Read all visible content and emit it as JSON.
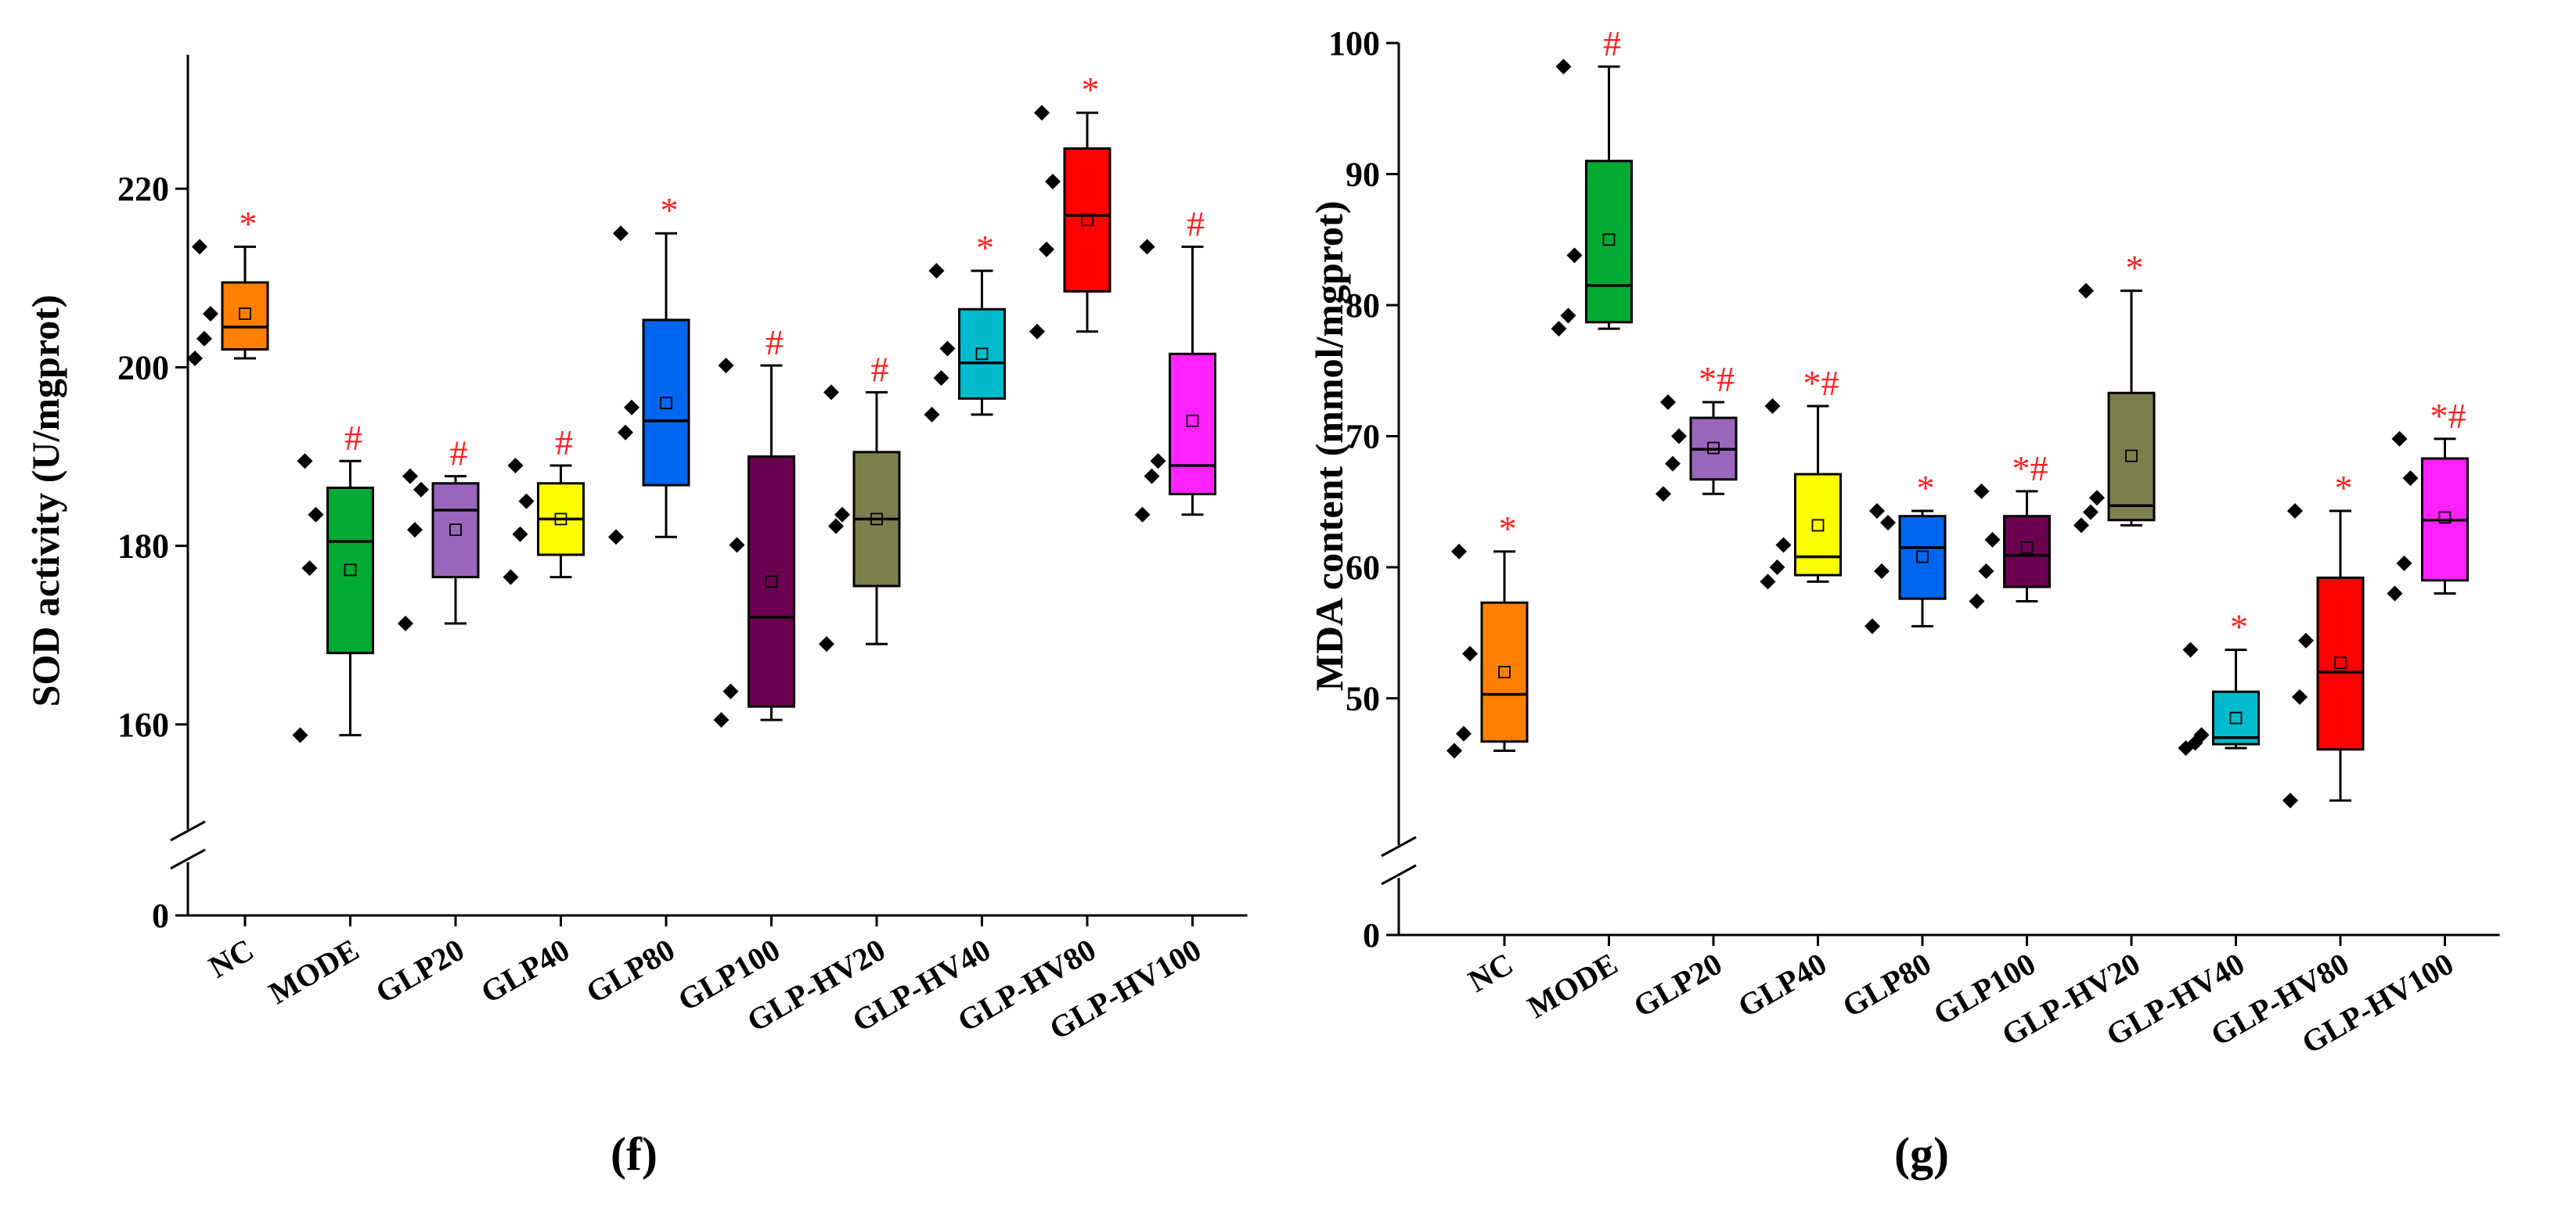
{
  "chart_data": [
    {
      "id": "f",
      "panel_label": "(f)",
      "type": "box",
      "ylabel": "SOD activity (U/mgprot)",
      "ylim": [
        150,
        235
      ],
      "axis_break": true,
      "zero_label": "0",
      "yticks": [
        160,
        180,
        200,
        220
      ],
      "categories": [
        "NC",
        "MODE",
        "GLP20",
        "GLP40",
        "GLP80",
        "GLP100",
        "GLP-HV20",
        "GLP-HV40",
        "GLP-HV80",
        "GLP-HV100"
      ],
      "colors": [
        "#ff8000",
        "#00aa33",
        "#9966bb",
        "#ffff00",
        "#0066ee",
        "#6b0050",
        "#7b7f4e",
        "#00bbcc",
        "#ff0000",
        "#ff22ff"
      ],
      "boxes": [
        {
          "min": 201.0,
          "q1": 202.0,
          "median": 204.5,
          "q3": 209.5,
          "max": 213.5,
          "mean": 206.0,
          "points": [
            201.0,
            203.2,
            206.0,
            213.5
          ],
          "sig": "*"
        },
        {
          "min": 158.8,
          "q1": 168.0,
          "median": 180.5,
          "q3": 186.5,
          "max": 189.5,
          "mean": 177.3,
          "points": [
            158.8,
            177.5,
            183.5,
            189.5
          ],
          "sig": "#"
        },
        {
          "min": 171.3,
          "q1": 176.5,
          "median": 184.0,
          "q3": 187.0,
          "max": 187.8,
          "mean": 181.8,
          "points": [
            171.3,
            181.8,
            186.3,
            187.8
          ],
          "sig": "#"
        },
        {
          "min": 176.5,
          "q1": 179.0,
          "median": 183.0,
          "q3": 187.0,
          "max": 189.0,
          "mean": 183.0,
          "points": [
            176.5,
            181.3,
            185.0,
            189.0
          ],
          "sig": "#"
        },
        {
          "min": 181.0,
          "q1": 186.8,
          "median": 194.0,
          "q3": 205.3,
          "max": 215.0,
          "mean": 196.0,
          "points": [
            181.0,
            192.7,
            195.5,
            215.0
          ],
          "sig": "*"
        },
        {
          "min": 160.5,
          "q1": 162.0,
          "median": 172.0,
          "q3": 190.0,
          "max": 200.2,
          "mean": 176.0,
          "points": [
            160.5,
            163.7,
            180.1,
            200.2
          ],
          "sig": "#"
        },
        {
          "min": 169.0,
          "q1": 175.5,
          "median": 183.0,
          "q3": 190.5,
          "max": 197.2,
          "mean": 183.0,
          "points": [
            169.0,
            182.2,
            183.5,
            197.2
          ],
          "sig": "#"
        },
        {
          "min": 194.7,
          "q1": 196.5,
          "median": 200.5,
          "q3": 206.5,
          "max": 210.8,
          "mean": 201.5,
          "points": [
            194.7,
            198.8,
            202.1,
            210.8
          ],
          "sig": "*"
        },
        {
          "min": 204.0,
          "q1": 208.5,
          "median": 217.0,
          "q3": 224.5,
          "max": 228.5,
          "mean": 216.5,
          "points": [
            204.0,
            213.2,
            220.8,
            228.5
          ],
          "sig": "*"
        },
        {
          "min": 183.5,
          "q1": 185.8,
          "median": 189.0,
          "q3": 201.5,
          "max": 213.5,
          "mean": 194.0,
          "points": [
            183.5,
            187.8,
            189.5,
            213.5
          ],
          "sig": "#"
        }
      ]
    },
    {
      "id": "g",
      "panel_label": "(g)",
      "type": "box",
      "ylabel": "MDA content (mmol/mgprot)",
      "ylim": [
        40,
        100
      ],
      "axis_break": true,
      "zero_label": "0",
      "yticks": [
        50,
        60,
        70,
        80,
        90,
        100
      ],
      "categories": [
        "NC",
        "MODE",
        "GLP20",
        "GLP40",
        "GLP80",
        "GLP100",
        "GLP-HV20",
        "GLP-HV40",
        "GLP-HV80",
        "GLP-HV100"
      ],
      "colors": [
        "#ff8000",
        "#00aa33",
        "#9966bb",
        "#ffff00",
        "#0066ee",
        "#6b0050",
        "#7b7f4e",
        "#00bbcc",
        "#ff0000",
        "#ff22ff"
      ],
      "boxes": [
        {
          "min": 46.0,
          "q1": 46.7,
          "median": 50.3,
          "q3": 57.3,
          "max": 61.2,
          "mean": 52.0,
          "points": [
            46.0,
            47.3,
            53.4,
            61.2
          ],
          "sig": "*"
        },
        {
          "min": 78.2,
          "q1": 78.7,
          "median": 81.5,
          "q3": 91.0,
          "max": 98.2,
          "mean": 85.0,
          "points": [
            78.2,
            79.2,
            83.8,
            98.2
          ],
          "sig": "#"
        },
        {
          "min": 65.6,
          "q1": 66.7,
          "median": 69.0,
          "q3": 71.4,
          "max": 72.6,
          "mean": 69.1,
          "points": [
            65.6,
            67.9,
            70.0,
            72.6
          ],
          "sig": "*#"
        },
        {
          "min": 58.9,
          "q1": 59.4,
          "median": 60.8,
          "q3": 67.1,
          "max": 72.3,
          "mean": 63.2,
          "points": [
            58.9,
            60.0,
            61.7,
            72.3
          ],
          "sig": "*#"
        },
        {
          "min": 55.5,
          "q1": 57.6,
          "median": 61.5,
          "q3": 63.9,
          "max": 64.3,
          "mean": 60.8,
          "points": [
            55.5,
            59.7,
            63.4,
            64.3
          ],
          "sig": "*"
        },
        {
          "min": 57.4,
          "q1": 58.5,
          "median": 60.9,
          "q3": 63.9,
          "max": 65.8,
          "mean": 61.5,
          "points": [
            57.4,
            59.7,
            62.1,
            65.8
          ],
          "sig": "*#"
        },
        {
          "min": 63.2,
          "q1": 63.6,
          "median": 64.7,
          "q3": 73.3,
          "max": 81.1,
          "mean": 68.5,
          "points": [
            63.2,
            64.2,
            65.3,
            81.1
          ],
          "sig": "*"
        },
        {
          "min": 46.2,
          "q1": 46.5,
          "median": 47.0,
          "q3": 50.5,
          "max": 53.7,
          "mean": 48.5,
          "points": [
            46.2,
            46.6,
            47.2,
            53.7
          ],
          "sig": "*"
        },
        {
          "min": 42.2,
          "q1": 46.1,
          "median": 52.0,
          "q3": 59.2,
          "max": 64.3,
          "mean": 52.7,
          "points": [
            42.2,
            50.1,
            54.4,
            64.3
          ],
          "sig": "*"
        },
        {
          "min": 58.0,
          "q1": 59.0,
          "median": 63.6,
          "q3": 68.3,
          "max": 69.8,
          "mean": 63.8,
          "points": [
            58.0,
            60.3,
            66.8,
            69.8
          ],
          "sig": "*#"
        }
      ]
    }
  ]
}
